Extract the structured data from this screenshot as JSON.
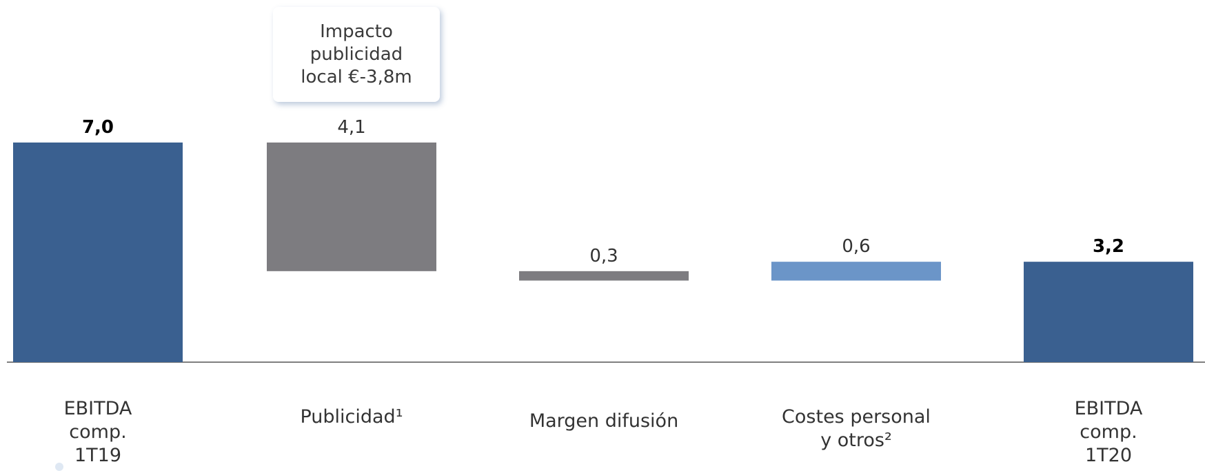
{
  "callout": {
    "text": "Impacto\npublicidad\nlocal €-3,8m"
  },
  "colors": {
    "total": "#3a6090",
    "decrease": "#7d7c80",
    "increase": "#6b95c8",
    "axis": "#555555",
    "label": "#333333"
  },
  "chart_data": {
    "type": "bar",
    "subtype": "waterfall",
    "categories": [
      "EBITDA\ncomp.\n1T19",
      "Publicidad¹",
      "Margen difusión",
      "Costes personal\ny otros²",
      "EBITDA\ncomp.\n1T20"
    ],
    "value_labels": [
      "7,0",
      "4,1",
      "0,3",
      "0,6",
      "3,2"
    ],
    "bars": [
      {
        "kind": "total",
        "start": 0,
        "end": 7.0,
        "bold": true
      },
      {
        "kind": "decrease",
        "start": 7.0,
        "end": 2.9,
        "bold": false
      },
      {
        "kind": "decrease",
        "start": 2.9,
        "end": 2.6,
        "bold": false
      },
      {
        "kind": "increase",
        "start": 2.6,
        "end": 3.2,
        "bold": false
      },
      {
        "kind": "total",
        "start": 0,
        "end": 3.2,
        "bold": true
      }
    ],
    "ylim": [
      0,
      7.0
    ],
    "grid": false,
    "legend": "none"
  }
}
